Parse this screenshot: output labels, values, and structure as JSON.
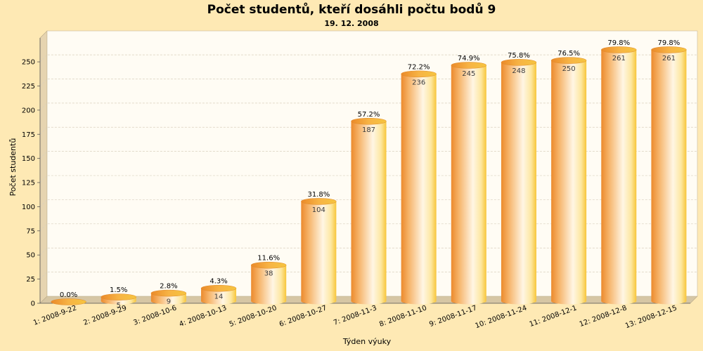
{
  "chart_data": {
    "type": "bar",
    "title": "Počet studentů, kteří dosáhli počtu bodů 9",
    "subtitle": "19. 12. 2008",
    "xlabel": "Týden výuky",
    "ylabel": "Počet studentů",
    "ylim": [
      0,
      260
    ],
    "yticks": [
      0,
      25,
      50,
      75,
      100,
      125,
      150,
      175,
      200,
      225,
      250
    ],
    "grid": true,
    "categories": [
      "1: 2008-9-22",
      "2: 2008-9-29",
      "3: 2008-10-6",
      "4: 2008-10-13",
      "5: 2008-10-20",
      "6: 2008-10-27",
      "7: 2008-11-3",
      "8: 2008-11-10",
      "9: 2008-11-17",
      "10: 2008-11-24",
      "11: 2008-12-1",
      "12: 2008-12-8",
      "13: 2008-12-15"
    ],
    "values": [
      0,
      5,
      9,
      14,
      38,
      104,
      187,
      236,
      245,
      248,
      250,
      261,
      261
    ],
    "percent_labels": [
      "0.0%",
      "1.5%",
      "2.8%",
      "4.3%",
      "11.6%",
      "31.8%",
      "57.2%",
      "72.2%",
      "74.9%",
      "75.8%",
      "76.5%",
      "79.8%",
      "79.8%"
    ],
    "colors": {
      "background": "#fee9b4",
      "plot_background": "#fffcf4",
      "side_wall": "#e6d4b0",
      "floor": "#d6c6a4",
      "bar_dark": "#ee8f2e",
      "bar_light": "#fff4dc",
      "bar_top": "#f3a23a",
      "grid": "#d9d0bd"
    }
  }
}
